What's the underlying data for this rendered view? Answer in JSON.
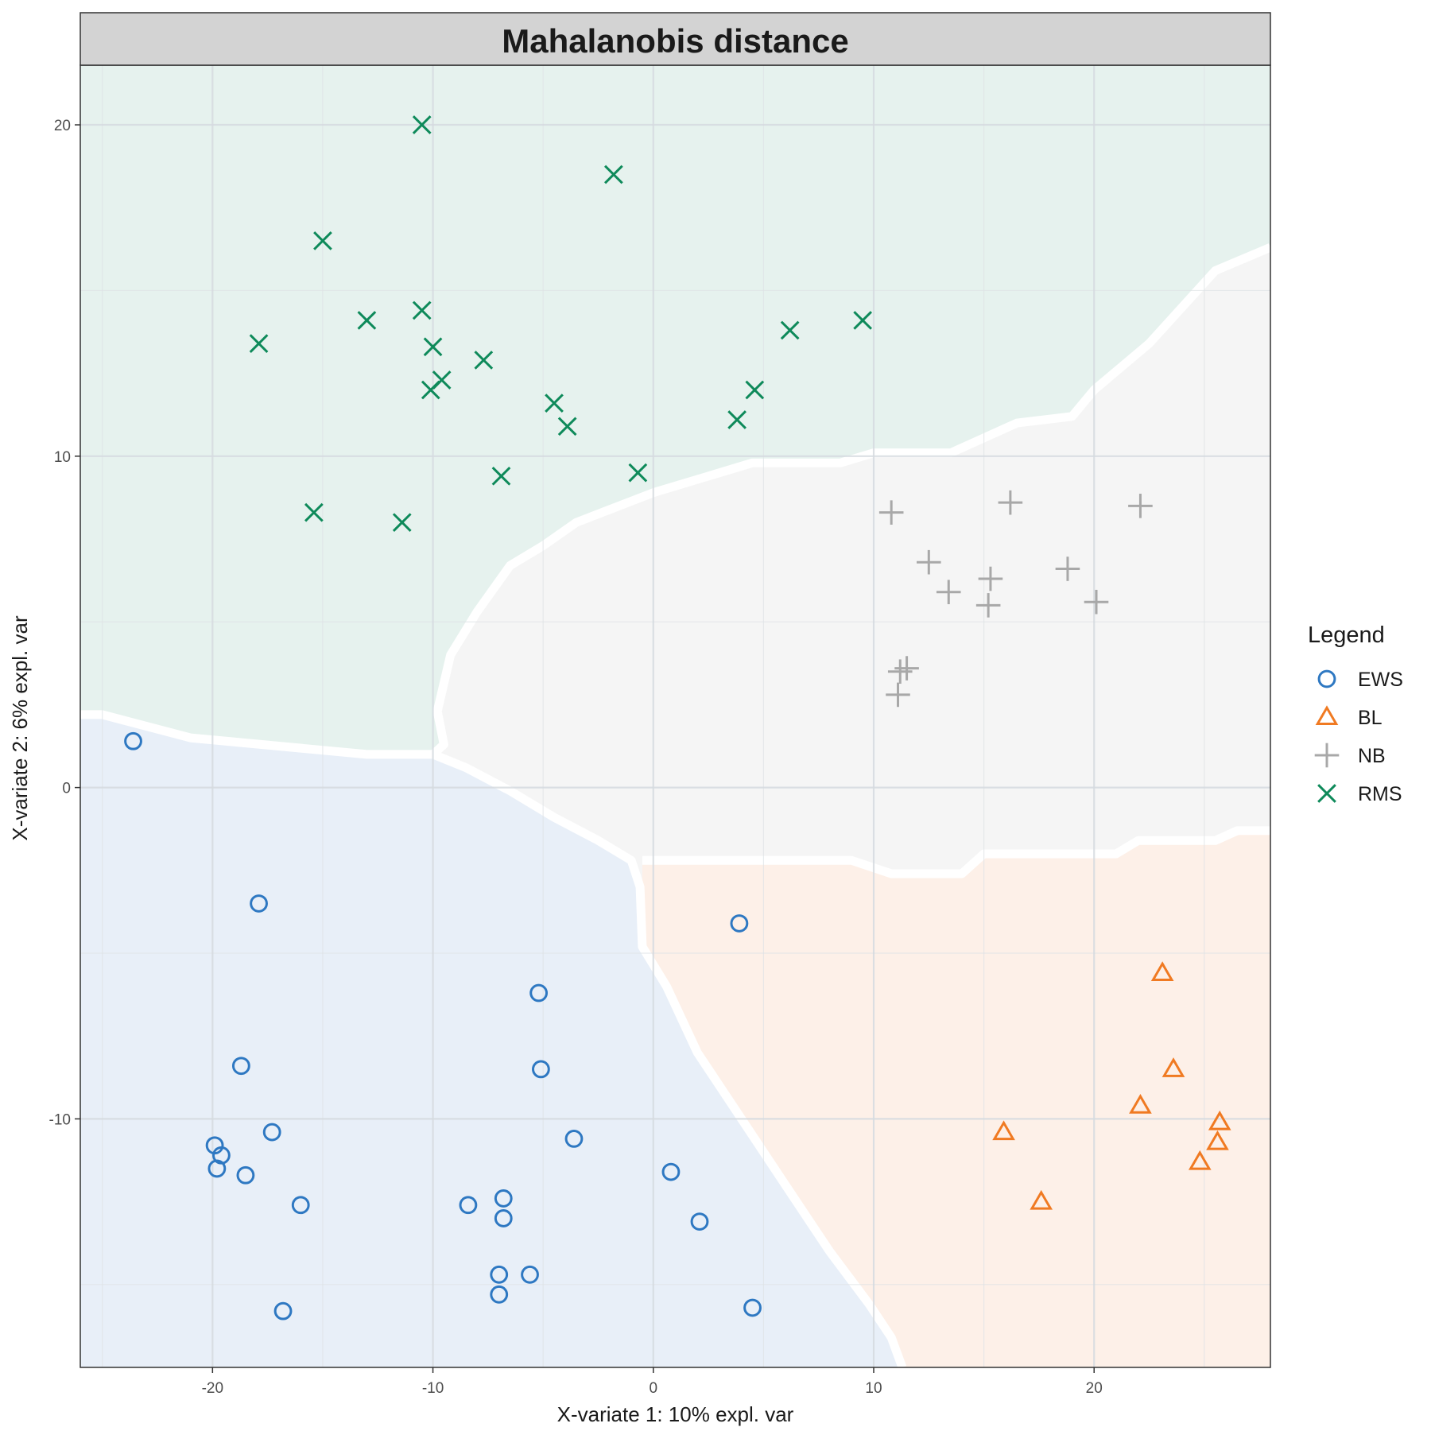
{
  "chart_data": {
    "type": "scatter",
    "title": "Mahalanobis distance",
    "xlabel": "X-variate 1: 10% expl. var",
    "ylabel": "X-variate 2: 6% expl. var",
    "xlim": [
      -26,
      28
    ],
    "ylim": [
      -17.5,
      21.8
    ],
    "x_ticks": [
      -20,
      -10,
      0,
      10,
      20
    ],
    "y_ticks": [
      -10,
      0,
      10,
      20
    ],
    "grid": true,
    "legend": {
      "title": "Legend",
      "position": "right"
    },
    "background_regions": [
      {
        "class": "RMS",
        "color": "#e6f2ee"
      },
      {
        "class": "NB",
        "color": "#f5f5f5"
      },
      {
        "class": "EWS",
        "color": "#e8eff8"
      },
      {
        "class": "BL",
        "color": "#fdf0e8"
      }
    ],
    "series": [
      {
        "name": "EWS",
        "marker": "circle",
        "color": "#2e78c2",
        "points": [
          [
            -23.6,
            1.4
          ],
          [
            -17.9,
            -3.5
          ],
          [
            3.9,
            -4.1
          ],
          [
            -5.2,
            -6.2
          ],
          [
            -18.7,
            -8.4
          ],
          [
            -5.1,
            -8.5
          ],
          [
            -17.3,
            -10.4
          ],
          [
            -19.9,
            -10.8
          ],
          [
            -19.6,
            -11.1
          ],
          [
            -3.6,
            -10.6
          ],
          [
            -19.8,
            -11.5
          ],
          [
            0.8,
            -11.6
          ],
          [
            -18.5,
            -11.7
          ],
          [
            -16.0,
            -12.6
          ],
          [
            -8.4,
            -12.6
          ],
          [
            -6.8,
            -12.4
          ],
          [
            -6.8,
            -13.0
          ],
          [
            2.1,
            -13.1
          ],
          [
            -7.0,
            -14.7
          ],
          [
            -5.6,
            -14.7
          ],
          [
            -7.0,
            -15.3
          ],
          [
            -16.8,
            -15.8
          ],
          [
            4.5,
            -15.7
          ]
        ]
      },
      {
        "name": "BL",
        "marker": "triangle",
        "color": "#f07a22",
        "points": [
          [
            23.1,
            -5.6
          ],
          [
            23.6,
            -8.5
          ],
          [
            22.1,
            -9.6
          ],
          [
            25.7,
            -10.1
          ],
          [
            15.9,
            -10.4
          ],
          [
            25.6,
            -10.7
          ],
          [
            24.8,
            -11.3
          ],
          [
            17.6,
            -12.5
          ]
        ]
      },
      {
        "name": "NB",
        "marker": "plus",
        "color": "#a8a8a8",
        "points": [
          [
            10.8,
            8.3
          ],
          [
            16.2,
            8.6
          ],
          [
            22.1,
            8.5
          ],
          [
            12.5,
            6.8
          ],
          [
            13.4,
            5.9
          ],
          [
            15.3,
            6.3
          ],
          [
            15.2,
            5.5
          ],
          [
            18.8,
            6.6
          ],
          [
            20.1,
            5.6
          ],
          [
            11.2,
            3.5
          ],
          [
            11.5,
            3.6
          ],
          [
            11.1,
            2.8
          ]
        ]
      },
      {
        "name": "RMS",
        "marker": "cross",
        "color": "#0e8a5a",
        "points": [
          [
            -10.5,
            20.0
          ],
          [
            -1.8,
            18.5
          ],
          [
            -15.0,
            16.5
          ],
          [
            -13.0,
            14.1
          ],
          [
            -10.5,
            14.4
          ],
          [
            -17.9,
            13.4
          ],
          [
            -10.0,
            13.3
          ],
          [
            -7.7,
            12.9
          ],
          [
            -9.6,
            12.3
          ],
          [
            -10.1,
            12.0
          ],
          [
            6.2,
            13.8
          ],
          [
            9.5,
            14.1
          ],
          [
            -4.5,
            11.6
          ],
          [
            -3.9,
            10.9
          ],
          [
            4.6,
            12.0
          ],
          [
            3.8,
            11.1
          ],
          [
            -6.9,
            9.4
          ],
          [
            -0.7,
            9.5
          ],
          [
            -15.4,
            8.3
          ],
          [
            -11.4,
            8.0
          ]
        ]
      }
    ]
  }
}
